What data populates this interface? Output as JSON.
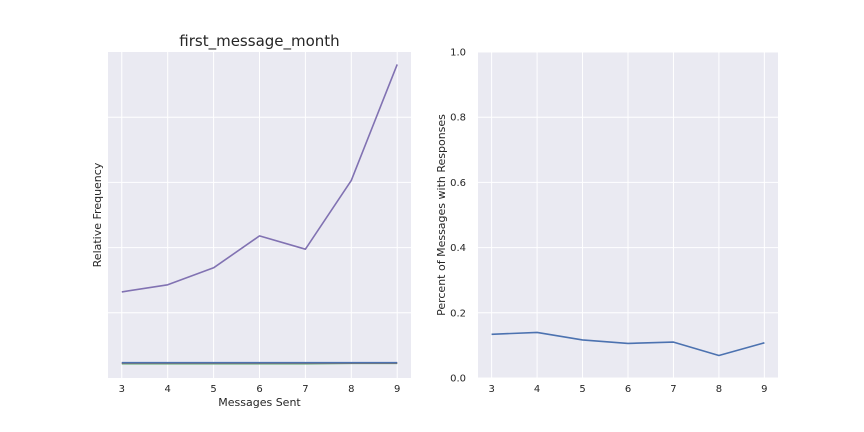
{
  "chart_data": [
    {
      "type": "line",
      "title": "first_message_month",
      "xlabel": "Messages Sent",
      "ylabel": "Relative Frequency",
      "x": [
        3,
        4,
        5,
        6,
        7,
        8,
        9
      ],
      "xticks": [
        "3",
        "4",
        "5",
        "6",
        "7",
        "8",
        "9"
      ],
      "xlim": [
        2.7,
        9.3
      ],
      "ylim": [
        0,
        1
      ],
      "yticks_visible": false,
      "grid": true,
      "series": [
        {
          "values": [
            0.264,
            0.286,
            0.338,
            0.436,
            0.395,
            0.606,
            0.962
          ],
          "color": "#8172b2"
        },
        {
          "values": [
            0.044,
            0.044,
            0.044,
            0.044,
            0.044,
            0.045,
            0.045
          ],
          "color": "#55a868"
        },
        {
          "values": [
            0.046,
            0.046,
            0.046,
            0.046,
            0.046,
            0.046,
            0.046
          ],
          "color": "#c44e52"
        },
        {
          "values": [
            0.047,
            0.047,
            0.047,
            0.047,
            0.047,
            0.047,
            0.047
          ],
          "color": "#4c72b0"
        }
      ]
    },
    {
      "type": "line",
      "title": "",
      "xlabel": "",
      "ylabel": "Percent of Messages with Responses",
      "x": [
        3,
        4,
        5,
        6,
        7,
        8,
        9
      ],
      "xticks": [
        "3",
        "4",
        "5",
        "6",
        "7",
        "8",
        "9"
      ],
      "xlim": [
        2.7,
        9.3
      ],
      "ylim": [
        0,
        1
      ],
      "yticks": [
        0.0,
        0.2,
        0.4,
        0.6,
        0.8,
        1.0
      ],
      "ytick_labels": [
        "0.0",
        "0.2",
        "0.4",
        "0.6",
        "0.8",
        "1.0"
      ],
      "grid": true,
      "series": [
        {
          "values": [
            0.134,
            0.14,
            0.117,
            0.106,
            0.11,
            0.069,
            0.108
          ],
          "color": "#4c72b0"
        }
      ]
    }
  ]
}
